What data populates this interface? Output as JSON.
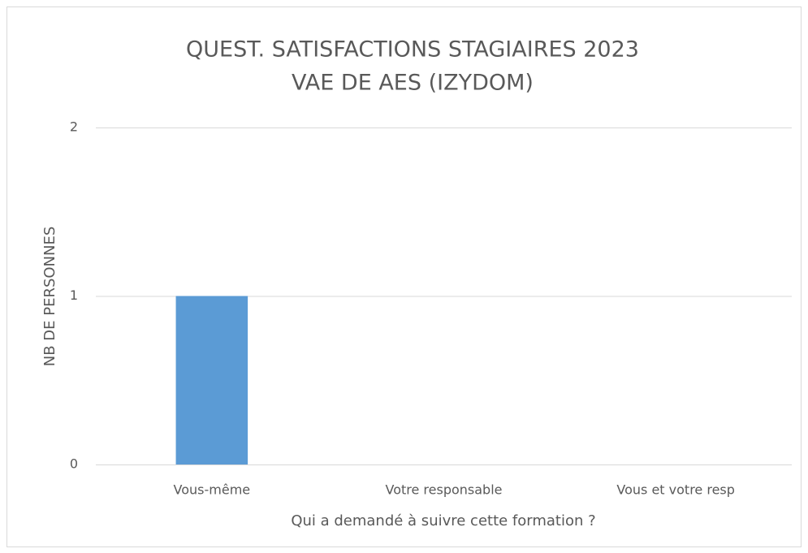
{
  "chart_data": {
    "type": "bar",
    "title": [
      "QUEST. SATISFACTIONS STAGIAIRES 2023",
      "VAE DE AES (IZYDOM)"
    ],
    "x_label": "Qui a demandé à suivre cette formation ?",
    "y_label": "NB DE PERSONNES",
    "categories": [
      "Vous-même",
      "Votre responsable",
      "Vous et votre resp"
    ],
    "values": [
      1,
      0,
      0
    ],
    "color": "#5b9bd5",
    "ylim": [
      0,
      2
    ],
    "yticks": [
      0,
      1,
      2
    ],
    "grid": true
  }
}
